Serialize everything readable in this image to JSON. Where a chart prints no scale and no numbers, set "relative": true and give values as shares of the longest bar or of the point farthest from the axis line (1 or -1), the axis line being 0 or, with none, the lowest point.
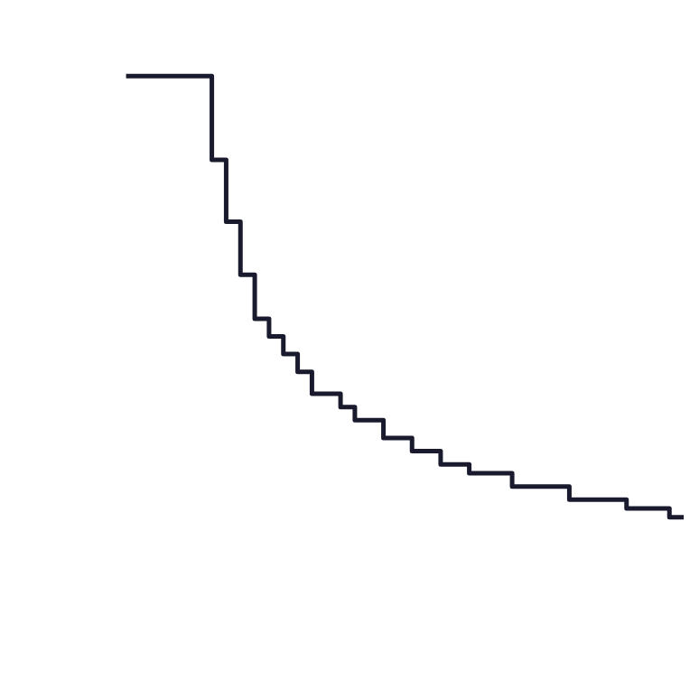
{
  "chart_data": {
    "type": "step",
    "relative": true,
    "categories": [
      null,
      null,
      null,
      null,
      null,
      null,
      null,
      null,
      null,
      null,
      null,
      null,
      null,
      null,
      null,
      null,
      null,
      null,
      null,
      null,
      null,
      null,
      null,
      null,
      null,
      null,
      null,
      null,
      null,
      null,
      null,
      null,
      null,
      null,
      null,
      null,
      null,
      null,
      null,
      null
    ],
    "series": [
      {
        "color": "#1a1a2e",
        "values": [
          1,
          1,
          1,
          1,
          1,
          1,
          0.81,
          0.67,
          0.55,
          0.45,
          0.41,
          0.37,
          0.33,
          0.28,
          0.28,
          0.25,
          0.22,
          0.22,
          0.18,
          0.18,
          0.15,
          0.15,
          0.12,
          0.12,
          0.1,
          0.1,
          0.1,
          0.07,
          0.07,
          0.07,
          0.07,
          0.04,
          0.04,
          0.04,
          0.04,
          0.02,
          0.02,
          0.02,
          0,
          0
        ]
      }
    ],
    "line_style": "solid"
  }
}
